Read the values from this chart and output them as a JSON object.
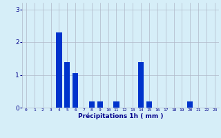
{
  "hours": [
    0,
    1,
    2,
    3,
    4,
    5,
    6,
    7,
    8,
    9,
    10,
    11,
    12,
    13,
    14,
    15,
    16,
    17,
    18,
    19,
    20,
    21,
    22,
    23
  ],
  "values": [
    0,
    0,
    0,
    0,
    2.3,
    1.4,
    1.05,
    0,
    0.2,
    0.2,
    0,
    0.2,
    0,
    0,
    1.4,
    0.2,
    0,
    0,
    0,
    0,
    0.2,
    0,
    0,
    0
  ],
  "bar_color": "#0033cc",
  "background_color": "#d6eef8",
  "grid_color": "#b0b8c8",
  "xlabel": "Précipitations 1h ( mm )",
  "xlabel_color": "#00008b",
  "tick_color": "#00008b",
  "ylim": [
    0,
    3.2
  ],
  "yticks": [
    0,
    1,
    2,
    3
  ],
  "xlim": [
    -0.5,
    23.5
  ]
}
